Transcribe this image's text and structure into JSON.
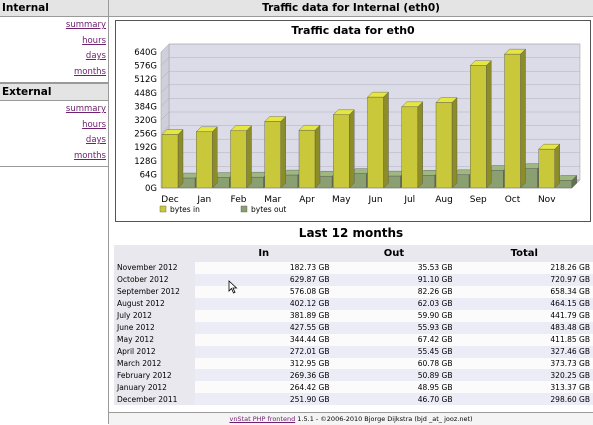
{
  "sidebar": {
    "internal": {
      "title": "Internal",
      "links": [
        "summary",
        "hours",
        "days",
        "months"
      ]
    },
    "external": {
      "title": "External",
      "links": [
        "summary",
        "hours",
        "days",
        "months"
      ]
    }
  },
  "page": {
    "title": "Traffic data for Internal (eth0)"
  },
  "chart_data": {
    "type": "bar",
    "title": "Traffic data for eth0",
    "categories": [
      "Dec",
      "Jan",
      "Feb",
      "Mar",
      "Apr",
      "May",
      "Jun",
      "Jul",
      "Aug",
      "Sep",
      "Oct",
      "Nov"
    ],
    "yticks": [
      "0G",
      "64G",
      "128G",
      "192G",
      "256G",
      "320G",
      "384G",
      "448G",
      "512G",
      "576G",
      "640G"
    ],
    "ylim": [
      0,
      640
    ],
    "series": [
      {
        "name": "bytes in",
        "color": "#c8c83a",
        "values": [
          251.9,
          264.42,
          269.36,
          312.95,
          272.01,
          344.44,
          427.55,
          381.89,
          402.12,
          576.08,
          629.87,
          182.73
        ]
      },
      {
        "name": "bytes out",
        "color": "#8aa070",
        "values": [
          46.7,
          48.95,
          50.89,
          60.78,
          55.45,
          67.42,
          55.93,
          59.9,
          62.03,
          82.26,
          91.1,
          35.53
        ]
      }
    ],
    "legend": "bottom-left"
  },
  "table": {
    "title": "Last 12 months",
    "headers": [
      "",
      "In",
      "Out",
      "Total"
    ],
    "rows": [
      [
        "November 2012",
        "182.73 GB",
        "35.53 GB",
        "218.26 GB"
      ],
      [
        "October 2012",
        "629.87 GB",
        "91.10 GB",
        "720.97 GB"
      ],
      [
        "September 2012",
        "576.08 GB",
        "82.26 GB",
        "658.34 GB"
      ],
      [
        "August 2012",
        "402.12 GB",
        "62.03 GB",
        "464.15 GB"
      ],
      [
        "July 2012",
        "381.89 GB",
        "59.90 GB",
        "441.79 GB"
      ],
      [
        "June 2012",
        "427.55 GB",
        "55.93 GB",
        "483.48 GB"
      ],
      [
        "May 2012",
        "344.44 GB",
        "67.42 GB",
        "411.85 GB"
      ],
      [
        "April 2012",
        "272.01 GB",
        "55.45 GB",
        "327.46 GB"
      ],
      [
        "March 2012",
        "312.95 GB",
        "60.78 GB",
        "373.73 GB"
      ],
      [
        "February 2012",
        "269.36 GB",
        "50.89 GB",
        "320.25 GB"
      ],
      [
        "January 2012",
        "264.42 GB",
        "48.95 GB",
        "313.37 GB"
      ],
      [
        "December 2011",
        "251.90 GB",
        "46.70 GB",
        "298.60 GB"
      ]
    ]
  },
  "footer": {
    "link_text": "vnStat PHP frontend",
    "rest": " 1.5.1 - ©2006-2010 Bjorge Dijkstra (bjd _at_ jooz.net)"
  }
}
